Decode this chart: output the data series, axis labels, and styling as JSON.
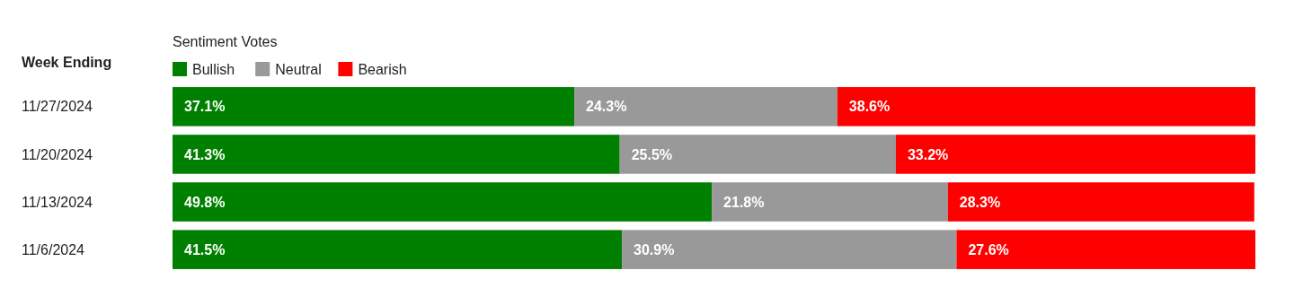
{
  "chart_data": {
    "type": "bar",
    "orientation": "horizontal",
    "stacked": true,
    "ylabel": "Week Ending",
    "legend_title": "Sentiment Votes",
    "legend": "top left",
    "tick_labels": "y",
    "xlim": [
      0,
      100
    ],
    "categories": [
      "11/27/2024",
      "11/20/2024",
      "11/13/2024",
      "11/6/2024"
    ],
    "series": [
      {
        "name": "Bullish",
        "color": "#008000",
        "values": [
          37.1,
          41.3,
          49.8,
          41.5
        ],
        "value_labels": [
          "37.1%",
          "41.3%",
          "49.8%",
          "41.5%"
        ]
      },
      {
        "name": "Neutral",
        "color": "#999999",
        "values": [
          24.3,
          25.5,
          21.8,
          30.9
        ],
        "value_labels": [
          "24.3%",
          "25.5%",
          "21.8%",
          "30.9%"
        ]
      },
      {
        "name": "Bearish",
        "color": "#ff0000",
        "values": [
          38.6,
          33.2,
          28.3,
          27.6
        ],
        "value_labels": [
          "38.6%",
          "33.2%",
          "28.3%",
          "27.6%"
        ]
      }
    ]
  }
}
